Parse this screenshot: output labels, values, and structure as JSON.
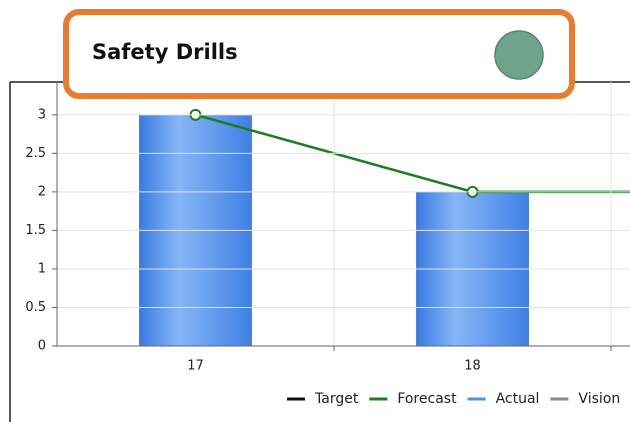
{
  "chart_data": {
    "type": "bar",
    "title": "Safety Drills",
    "categories": [
      "17",
      "18",
      null
    ],
    "series": [
      {
        "name": "Target",
        "color": "#111111",
        "type": "line",
        "values": [
          null,
          null,
          null
        ]
      },
      {
        "name": "Forecast",
        "color": "#1e7d1e",
        "type": "line",
        "values": [
          3,
          2,
          2
        ]
      },
      {
        "name": "Actual",
        "color": "#4a8fe8",
        "type": "bar",
        "values": [
          3,
          2,
          null
        ]
      },
      {
        "name": "Vision",
        "color": "#8a8a8a",
        "type": "line",
        "values": [
          null,
          null,
          null
        ]
      }
    ],
    "ylim": [
      0,
      3.4
    ],
    "yticks": [
      0,
      0.5,
      1,
      1.5,
      2,
      2.5,
      3
    ],
    "grid": true,
    "legend": "bottom-right"
  }
}
